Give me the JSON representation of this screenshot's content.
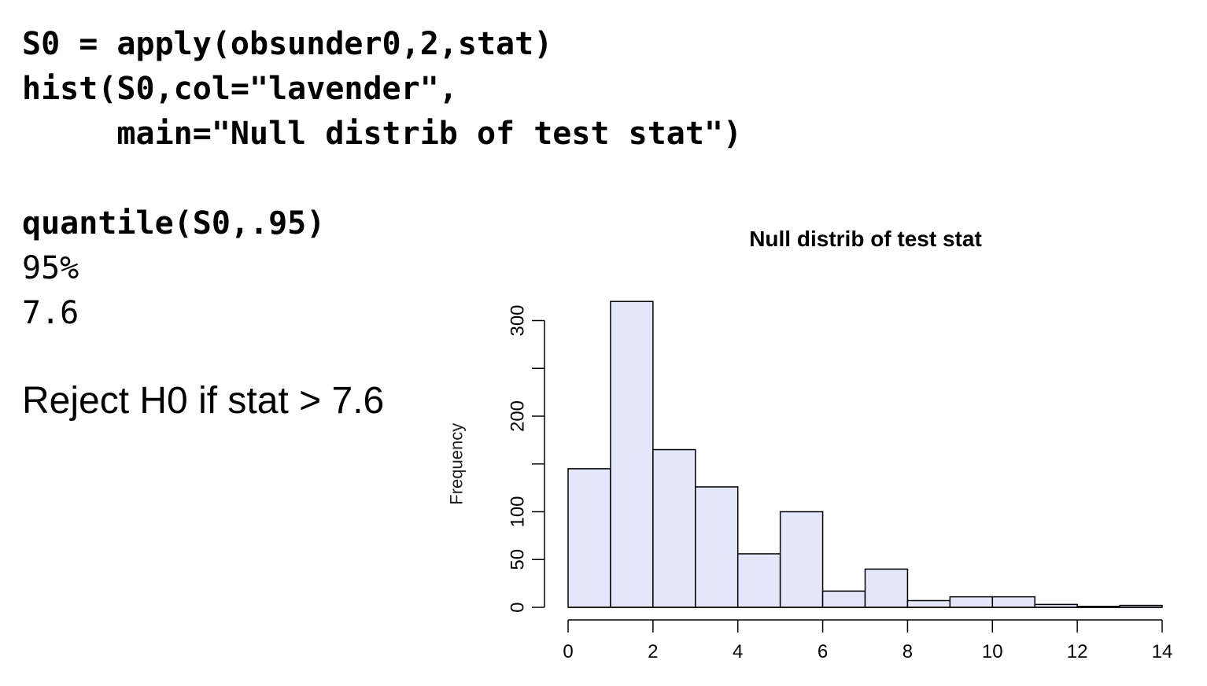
{
  "code": {
    "lines": [
      "S0 = apply(obsunder0,2,stat)",
      "hist(S0,col=\"lavender\",",
      "     main=\"Null distrib of test stat\")"
    ],
    "command": "quantile(S0,.95)",
    "output_label": "95%",
    "output_value": "7.6"
  },
  "conclusion": "Reject H0 if stat > 7.6",
  "chart_data": {
    "type": "histogram",
    "title": "Null distrib of test stat",
    "xlabel": "",
    "ylabel": "Frequency",
    "bar_color": "#e6e6fa",
    "bin_edges": [
      0,
      1,
      2,
      3,
      4,
      5,
      6,
      7,
      8,
      9,
      10,
      11,
      12,
      13,
      14
    ],
    "values": [
      145,
      320,
      165,
      126,
      56,
      100,
      17,
      40,
      7,
      11,
      11,
      3,
      1,
      2
    ],
    "xlim": [
      0,
      14
    ],
    "ylim": [
      0,
      320
    ],
    "x_ticks": [
      "0",
      "2",
      "4",
      "6",
      "8",
      "10",
      "12",
      "14"
    ],
    "y_ticks": [
      "0",
      "50",
      "100",
      "200",
      "300"
    ],
    "grid": false
  }
}
